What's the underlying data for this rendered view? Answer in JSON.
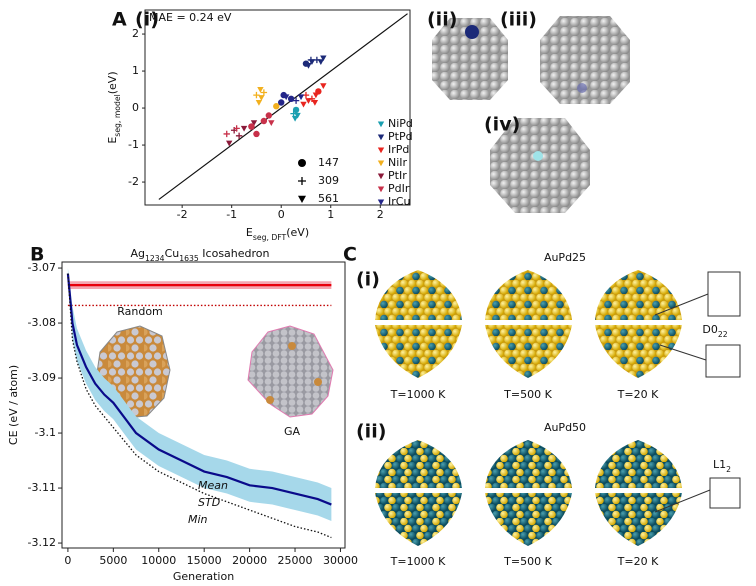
{
  "panel_labels": [
    "A",
    "(i)",
    "(ii)",
    "(iii)",
    "(iv)",
    "B",
    "C",
    "(i)",
    "(ii)"
  ],
  "chart_data": [
    {
      "type": "scatter",
      "annotation": "MAE = 0.24 eV",
      "xlabel": "E",
      "xlabel_sub": "seg, DFT",
      "xlabel_unit": "(eV)",
      "ylabel": "E",
      "ylabel_sub": "seg, model",
      "ylabel_unit": "(eV)",
      "xlim": [
        -2.75,
        2.6
      ],
      "ylim": [
        -2.62,
        2.65
      ],
      "xticks": [
        -2,
        -1,
        0,
        1,
        2
      ],
      "yticks": [
        -2,
        -1,
        0,
        1,
        2
      ],
      "series": [
        {
          "name": "NiPd",
          "color": "#1a9fb0",
          "x": [
            0.28,
            0.33,
            0.3,
            0.25
          ],
          "y": [
            -0.28,
            -0.2,
            -0.05,
            -0.15
          ],
          "markers": [
            "triangle",
            "triangle",
            "circle",
            "plus"
          ]
        },
        {
          "name": "PtPd",
          "color": "#1c2a78",
          "x": [
            0.55,
            0.62,
            0.72,
            0.8,
            0.85,
            0.6,
            0.5
          ],
          "y": [
            1.15,
            1.25,
            1.3,
            1.25,
            1.35,
            1.3,
            1.2
          ],
          "markers": [
            "triangle",
            "triangle",
            "plus",
            "triangle",
            "triangle",
            "plus",
            "circle"
          ]
        },
        {
          "name": "IrPd",
          "color": "#e8251f",
          "x": [
            0.45,
            0.55,
            0.62,
            0.7,
            0.75,
            0.85,
            0.68,
            0.5
          ],
          "y": [
            0.1,
            0.2,
            0.25,
            0.35,
            0.45,
            0.6,
            0.15,
            0.35
          ],
          "markers": [
            "triangle",
            "triangle",
            "plus",
            "triangle",
            "circle",
            "triangle",
            "triangle",
            "plus"
          ]
        },
        {
          "name": "NiIr",
          "color": "#f2b01e",
          "x": [
            -0.45,
            -0.4,
            -0.5,
            -0.35,
            -0.42,
            -0.1
          ],
          "y": [
            0.15,
            0.28,
            0.35,
            0.42,
            0.5,
            0.05
          ],
          "markers": [
            "triangle",
            "triangle",
            "plus",
            "plus",
            "triangle",
            "circle"
          ]
        },
        {
          "name": "PtIr",
          "color": "#8b1a3a",
          "x": [
            -1.05,
            -0.85,
            -0.75,
            -0.6,
            -0.95,
            -0.55
          ],
          "y": [
            -0.95,
            -0.75,
            -0.55,
            -0.5,
            -0.6,
            -0.4
          ],
          "markers": [
            "triangle",
            "plus",
            "triangle",
            "circle",
            "plus",
            "triangle"
          ]
        },
        {
          "name": "PdIr",
          "color": "#c8314a",
          "x": [
            -1.1,
            -0.9,
            -0.5,
            -0.35,
            -0.2,
            -0.25,
            -0.6
          ],
          "y": [
            -0.7,
            -0.55,
            -0.7,
            -0.35,
            -0.4,
            -0.2,
            -0.5
          ],
          "markers": [
            "plus",
            "plus",
            "circle",
            "circle",
            "triangle",
            "circle",
            "circle"
          ]
        },
        {
          "name": "IrCu",
          "color": "#24268a",
          "x": [
            0.0,
            0.1,
            0.2,
            0.3,
            0.4,
            0.05
          ],
          "y": [
            0.15,
            0.3,
            0.25,
            0.2,
            0.3,
            0.35
          ],
          "markers": [
            "circle",
            "triangle",
            "circle",
            "plus",
            "triangle",
            "circle"
          ]
        }
      ],
      "size_legend": {
        "values": [
          147,
          309,
          561
        ],
        "markers": [
          "circle",
          "plus",
          "triangle"
        ]
      }
    },
    {
      "type": "line",
      "title_parts": [
        "Ag",
        "1234",
        "Cu",
        "1635",
        " Icosahedron"
      ],
      "xlabel": "Generation",
      "ylabel": "CE (eV / atom)",
      "xlim": [
        -650,
        30500
      ],
      "ylim": [
        -3.1209,
        -3.0689
      ],
      "xticks": [
        0,
        5000,
        10000,
        15000,
        20000,
        25000,
        30000
      ],
      "yticks": [
        -3.07,
        -3.08,
        -3.09,
        -3.1,
        -3.11,
        -3.12
      ],
      "annotations": [
        {
          "text": "Random",
          "color": "#e8000b"
        },
        {
          "text": "GA",
          "color": "#1c2a78"
        }
      ],
      "x": [
        0,
        500,
        1000,
        2000,
        3000,
        4000,
        5000,
        7500,
        10000,
        12500,
        15000,
        17500,
        20000,
        22500,
        25000,
        27500,
        29000
      ],
      "series": [
        {
          "color": "#f4a6b0",
          "style": "band",
          "upper": [
            -3.0724,
            -3.0724,
            -3.0724,
            -3.0724,
            -3.0724,
            -3.0724,
            -3.0724,
            -3.0724,
            -3.0724,
            -3.0724,
            -3.0724,
            -3.0724,
            -3.0724,
            -3.0724,
            -3.0724,
            -3.0724,
            -3.0724
          ],
          "lower": [
            -3.0738,
            -3.0738,
            -3.0738,
            -3.0738,
            -3.0738,
            -3.0738,
            -3.0738,
            -3.0738,
            -3.0738,
            -3.0738,
            -3.0738,
            -3.0738,
            -3.0738,
            -3.0738,
            -3.0738,
            -3.0738,
            -3.0738
          ]
        },
        {
          "color": "#e8000b",
          "style": "solid",
          "values": [
            -3.0731,
            -3.0731,
            -3.0731,
            -3.0731,
            -3.0731,
            -3.0731,
            -3.0731,
            -3.0731,
            -3.0731,
            -3.0731,
            -3.0731,
            -3.0731,
            -3.0731,
            -3.0731,
            -3.0731,
            -3.0731,
            -3.0731
          ]
        },
        {
          "color": "#c00000",
          "style": "dotted",
          "values": [
            -3.0768,
            -3.0768,
            -3.0768,
            -3.0768,
            -3.0768,
            -3.0768,
            -3.0768,
            -3.0768,
            -3.0768,
            -3.0768,
            -3.0768,
            -3.0768,
            -3.0768,
            -3.0768,
            -3.0768,
            -3.0768,
            -3.0768
          ]
        },
        {
          "name": "STD",
          "color": "#a6d8ea",
          "style": "band",
          "upper": [
            -3.07,
            -3.077,
            -3.081,
            -3.085,
            -3.088,
            -3.09,
            -3.0915,
            -3.097,
            -3.1,
            -3.102,
            -3.104,
            -3.105,
            -3.1065,
            -3.107,
            -3.108,
            -3.109,
            -3.11
          ],
          "lower": [
            -3.072,
            -3.083,
            -3.087,
            -3.091,
            -3.094,
            -3.096,
            -3.0975,
            -3.103,
            -3.106,
            -3.108,
            -3.11,
            -3.111,
            -3.1125,
            -3.113,
            -3.114,
            -3.115,
            -3.116
          ]
        },
        {
          "name": "Mean",
          "color": "#0a0a8a",
          "style": "solid",
          "values": [
            -3.071,
            -3.08,
            -3.084,
            -3.088,
            -3.091,
            -3.093,
            -3.0945,
            -3.1,
            -3.103,
            -3.105,
            -3.107,
            -3.108,
            -3.1095,
            -3.11,
            -3.111,
            -3.112,
            -3.113
          ]
        },
        {
          "name": "Min",
          "color": "#111111",
          "style": "dotted",
          "values": [
            -3.071,
            -3.083,
            -3.087,
            -3.092,
            -3.095,
            -3.097,
            -3.099,
            -3.104,
            -3.107,
            -3.109,
            -3.111,
            -3.1125,
            -3.114,
            -3.1155,
            -3.117,
            -3.118,
            -3.119
          ]
        }
      ]
    }
  ],
  "panel_c": {
    "rows": [
      {
        "title": "AuPd25",
        "temperatures": [
          "T=1000 K",
          "T=500 K",
          "T=20 K"
        ],
        "phase": "D0",
        "phase_sub": "22"
      },
      {
        "title": "AuPd50",
        "temperatures": [
          "T=1000 K",
          "T=500 K",
          "T=20 K"
        ],
        "phase": "L1",
        "phase_sub": "2"
      }
    ]
  }
}
